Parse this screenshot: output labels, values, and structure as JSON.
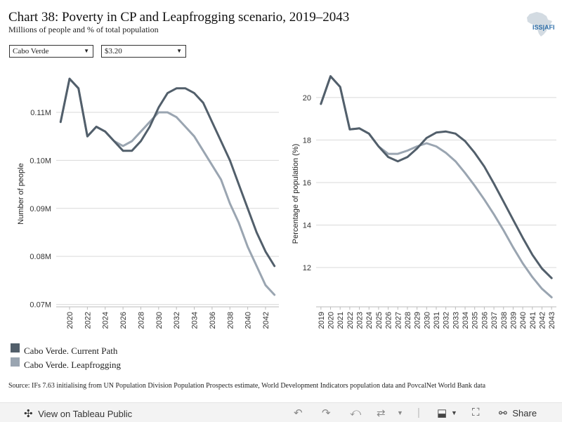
{
  "header": {
    "title": "Chart 38: Poverty in CP and Leapfrogging scenario, 2019–2043",
    "subtitle": "Millions of people and % of total population",
    "logo_text": "ISS|AFI"
  },
  "filters": {
    "country": "Cabo Verde",
    "poverty_line": "$3.20"
  },
  "legend": {
    "items": [
      {
        "label": "Cabo Verde. Current Path",
        "color": "#525f6b"
      },
      {
        "label": "Cabo Verde. Leapfrogging",
        "color": "#9aa5b1"
      }
    ]
  },
  "source": "Source: IFs 7.63 initialising from UN Population Division Population Prospects estimate, World Development Indicators population data and PovcalNet World Bank data",
  "footer": {
    "view_label": "View on Tableau Public",
    "share_label": "Share"
  },
  "chart_data": [
    {
      "type": "line",
      "title": "",
      "ylabel": "Number of people",
      "xlabel": "",
      "ylim": [
        0.0695,
        0.1195
      ],
      "xlim": [
        2018.5,
        2043.5
      ],
      "x_ticks": [
        2020,
        2022,
        2024,
        2026,
        2028,
        2030,
        2032,
        2034,
        2036,
        2038,
        2040,
        2042
      ],
      "y_ticks": [
        0.07,
        0.08,
        0.09,
        0.1,
        0.11
      ],
      "y_tick_labels": [
        "0.07M",
        "0.08M",
        "0.09M",
        "0.10M",
        "0.11M"
      ],
      "grid": true,
      "x": [
        2019,
        2020,
        2021,
        2022,
        2023,
        2024,
        2025,
        2026,
        2027,
        2028,
        2029,
        2030,
        2031,
        2032,
        2033,
        2034,
        2035,
        2036,
        2037,
        2038,
        2039,
        2040,
        2041,
        2042,
        2043
      ],
      "series": [
        {
          "name": "Cabo Verde. Current Path",
          "color": "#525f6b",
          "values": [
            0.108,
            0.117,
            0.115,
            0.105,
            0.107,
            0.106,
            0.104,
            0.102,
            0.102,
            0.104,
            0.107,
            0.111,
            0.114,
            0.115,
            0.115,
            0.114,
            0.112,
            0.108,
            0.104,
            0.1,
            0.095,
            0.09,
            0.085,
            0.081,
            0.078
          ]
        },
        {
          "name": "Cabo Verde. Leapfrogging",
          "color": "#9aa5b1",
          "values": [
            0.108,
            0.117,
            0.115,
            0.105,
            0.107,
            0.106,
            0.104,
            0.103,
            0.104,
            0.106,
            0.108,
            0.11,
            0.11,
            0.109,
            0.107,
            0.105,
            0.102,
            0.099,
            0.096,
            0.091,
            0.087,
            0.082,
            0.078,
            0.074,
            0.072
          ]
        }
      ]
    },
    {
      "type": "line",
      "title": "",
      "ylabel": "Percentage of population (%)",
      "xlabel": "",
      "ylim": [
        10.15,
        21.45
      ],
      "xlim": [
        2018.5,
        2043.5
      ],
      "x_ticks": [
        2019,
        2020,
        2021,
        2022,
        2023,
        2024,
        2025,
        2026,
        2027,
        2028,
        2029,
        2030,
        2031,
        2032,
        2033,
        2034,
        2035,
        2036,
        2037,
        2038,
        2039,
        2040,
        2041,
        2042,
        2043
      ],
      "y_ticks": [
        12,
        14,
        16,
        18,
        20
      ],
      "y_tick_labels": [
        "12",
        "14",
        "16",
        "18",
        "20"
      ],
      "grid": true,
      "x": [
        2019,
        2020,
        2021,
        2022,
        2023,
        2024,
        2025,
        2026,
        2027,
        2028,
        2029,
        2030,
        2031,
        2032,
        2033,
        2034,
        2035,
        2036,
        2037,
        2038,
        2039,
        2040,
        2041,
        2042,
        2043
      ],
      "series": [
        {
          "name": "Cabo Verde. Current Path",
          "color": "#525f6b",
          "values": [
            19.7,
            21.0,
            20.5,
            18.5,
            18.55,
            18.3,
            17.7,
            17.2,
            17.0,
            17.2,
            17.6,
            18.1,
            18.35,
            18.4,
            18.3,
            17.95,
            17.4,
            16.75,
            15.95,
            15.1,
            14.25,
            13.4,
            12.6,
            11.95,
            11.5
          ]
        },
        {
          "name": "Cabo Verde. Leapfrogging",
          "color": "#9aa5b1",
          "values": [
            19.7,
            21.0,
            20.5,
            18.5,
            18.55,
            18.3,
            17.7,
            17.35,
            17.35,
            17.5,
            17.7,
            17.85,
            17.7,
            17.4,
            17.0,
            16.45,
            15.85,
            15.2,
            14.5,
            13.75,
            12.95,
            12.2,
            11.55,
            11.0,
            10.6
          ]
        }
      ]
    }
  ]
}
